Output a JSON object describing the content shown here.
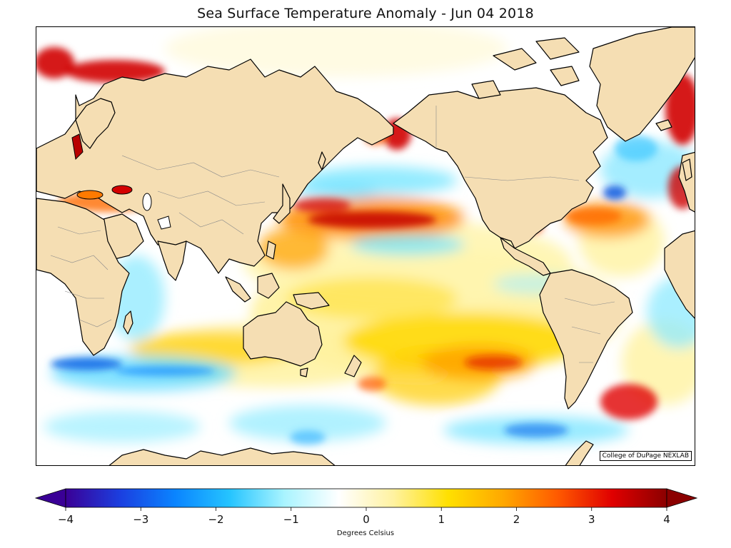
{
  "title": "Sea Surface Temperature Anomaly - Jun 04 2018",
  "credit": "College of DuPage NEXLAB",
  "colorbar": {
    "label": "Degrees Celsius",
    "min": -4,
    "max": 4,
    "ticks": [
      "−4",
      "−3",
      "−2",
      "−1",
      "0",
      "1",
      "2",
      "3",
      "4"
    ],
    "stops": [
      "#3a0096",
      "#1b3fe0",
      "#0a84ff",
      "#25c4ff",
      "#a9f4ff",
      "#ffffff",
      "#fff2a0",
      "#ffe000",
      "#ffa800",
      "#ff5a00",
      "#e00000",
      "#8b0000"
    ]
  },
  "colors": {
    "land": "#f5deb3",
    "coast": "#000000",
    "border": "#8a8a8a",
    "warm_strong": "#b40000",
    "warm": "#ff7a00",
    "warm_light": "#ffd300",
    "cool": "#3fc8ff",
    "cool_strong": "#1060e0"
  }
}
